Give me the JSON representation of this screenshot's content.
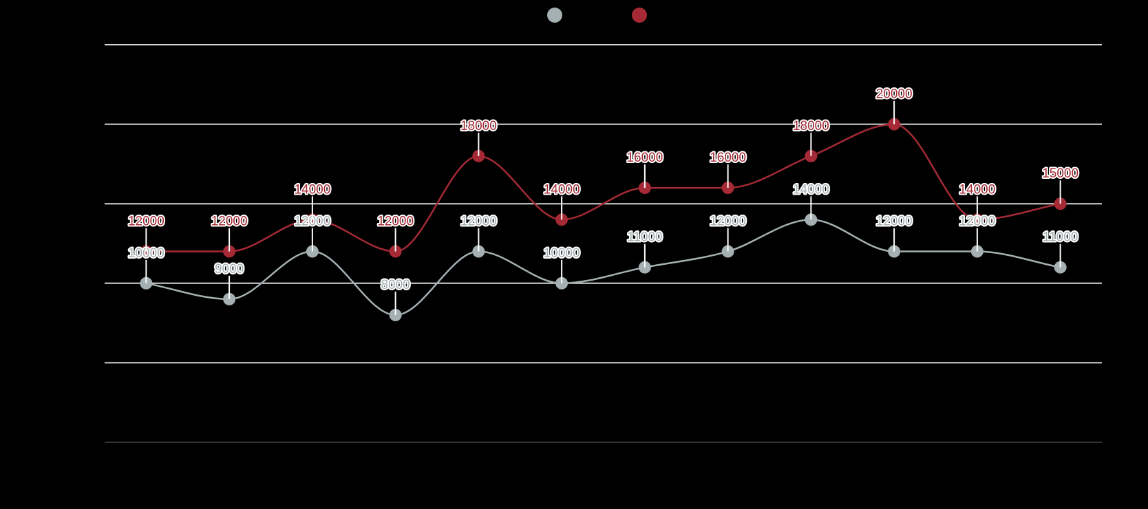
{
  "chart_data": {
    "type": "line",
    "title": "",
    "xlabel": "",
    "ylabel": "",
    "categories": [
      "",
      "",
      "",
      "",
      "",
      "",
      "",
      "",
      "",
      "",
      "",
      ""
    ],
    "ylim": [
      0,
      25000
    ],
    "grid": true,
    "legend_position": "top-center",
    "series": [
      {
        "name": "",
        "color": "#a5b0b3",
        "values": [
          10000,
          9000,
          12000,
          8000,
          12000,
          10000,
          11000,
          12000,
          14000,
          12000,
          12000,
          11000
        ],
        "labels": [
          "10000",
          "9000",
          "12000",
          "8000",
          "12000",
          "10000",
          "11000",
          "12000",
          "14000",
          "12000",
          "12000",
          "11000"
        ]
      },
      {
        "name": "",
        "color": "#a52a35",
        "values": [
          12000,
          12000,
          14000,
          12000,
          18000,
          14000,
          16000,
          16000,
          18000,
          20000,
          14000,
          15000
        ],
        "labels": [
          "12000",
          "12000",
          "14000",
          "12000",
          "18000",
          "14000",
          "16000",
          "16000",
          "18000",
          "20000",
          "14000",
          "15000"
        ]
      }
    ]
  }
}
